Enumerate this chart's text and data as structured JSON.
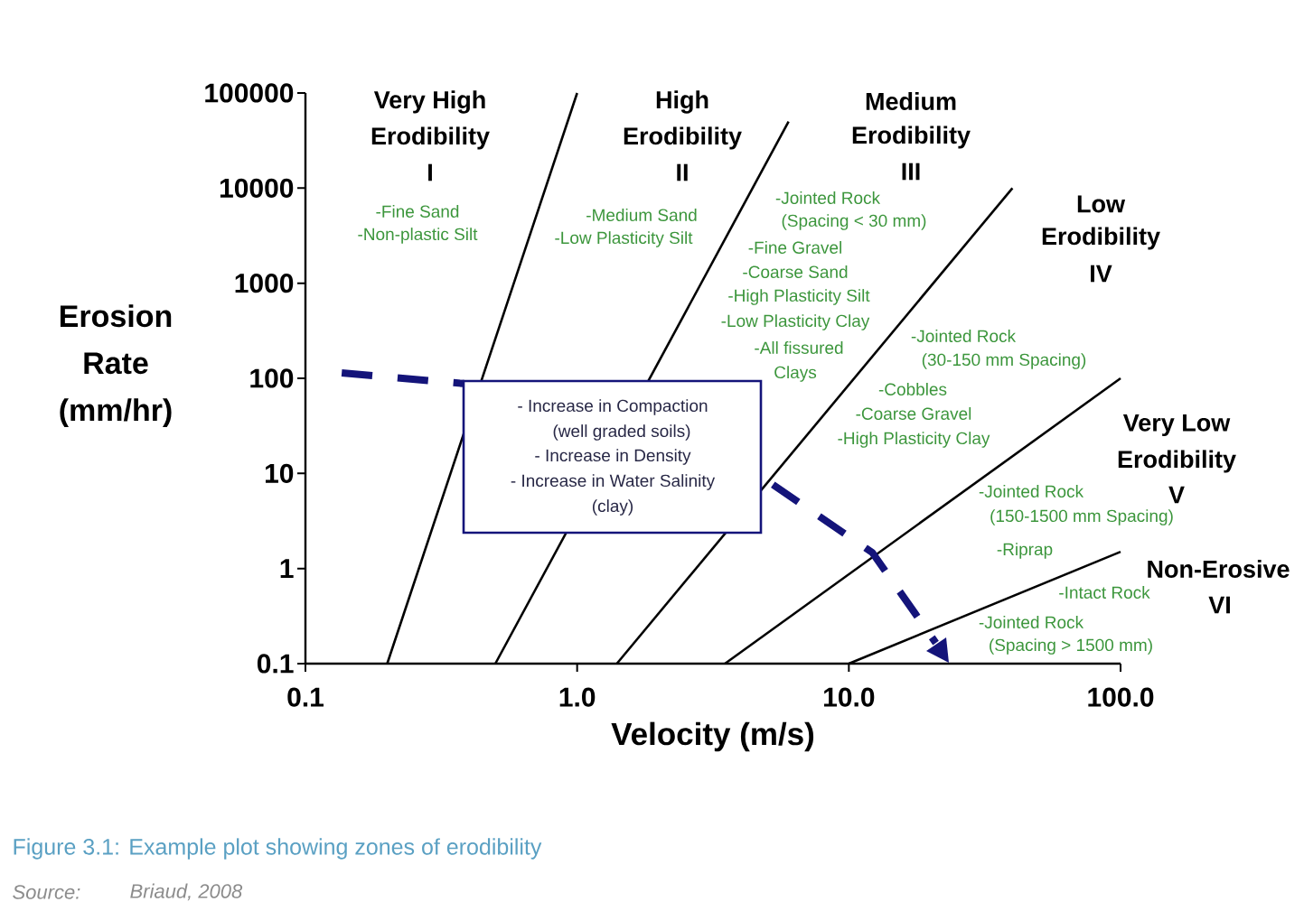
{
  "chart_data": {
    "type": "line",
    "xlabel": "Velocity (m/s)",
    "ylabel": "Erosion Rate (mm/hr)",
    "log": "xy",
    "xlim": [
      0.1,
      100
    ],
    "ylim": [
      0.1,
      100000
    ],
    "xticks": [
      0.1,
      {
        "value": 1,
        "label": "1.0"
      },
      {
        "value": 10,
        "label": "10.0"
      },
      {
        "value": 100,
        "label": "100.0"
      }
    ],
    "yticks": [
      0.1,
      1,
      10,
      100,
      1000,
      10000,
      100000
    ],
    "series": [
      {
        "color": "#000000",
        "x": [
          0.2,
          1.0
        ],
        "values": [
          0.1,
          100000
        ]
      },
      {
        "color": "#000000",
        "x": [
          0.5,
          6
        ],
        "values": [
          0.1,
          50000
        ]
      },
      {
        "color": "#000000",
        "x": [
          1.4,
          40
        ],
        "values": [
          0.1,
          10000
        ]
      },
      {
        "color": "#000000",
        "x": [
          3.5,
          100
        ],
        "values": [
          0.1,
          100
        ]
      },
      {
        "color": "#000000",
        "x": [
          10,
          100
        ],
        "values": [
          0.1,
          1.5
        ]
      },
      {
        "color": "#14147a",
        "line_style": "dashed",
        "x": [
          0.136,
          0.382,
          4.87,
          12.2,
          20.9
        ],
        "values": [
          114,
          88,
          8.85,
          1.47,
          0.165
        ]
      }
    ],
    "annotations": [
      "Very High",
      "Erodibility",
      "I",
      "High",
      "Erodibility",
      "II",
      "Medium",
      "Erodibility",
      "III",
      "Low",
      "Erodibility",
      "IV",
      "Very Low",
      "Erodibility",
      "V",
      "Non-Erosive",
      "VI",
      "-Fine Sand",
      "-Non-plastic Silt",
      "-Medium Sand",
      "-Low Plasticity Silt",
      "-Jointed Rock",
      "(Spacing < 30 mm)",
      "-Fine Gravel",
      "-Coarse Sand",
      "-High Plasticity Silt",
      "-Low Plasticity Clay",
      "-All fissured",
      "Clays",
      "-Jointed Rock",
      "(30-150 mm Spacing)",
      "-Cobbles",
      "-Coarse Gravel",
      "-High Plasticity Clay",
      "-Jointed Rock",
      "(150-1500 mm Spacing)",
      "-Riprap",
      "-Intact Rock",
      "-Jointed Rock",
      "(Spacing > 1500 mm)",
      "- Increase in Compaction",
      "(well graded soils)",
      "- Increase in Density",
      "- Increase in Water Salinity",
      "(clay)",
      "Figure 3.1: Example plot showing zones of erodibility",
      "Source:",
      "Briaud, 2008"
    ]
  }
}
